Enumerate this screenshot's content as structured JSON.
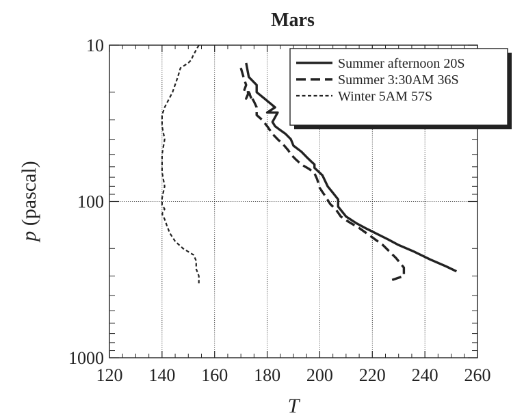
{
  "chart_data": {
    "type": "line",
    "title": "Mars",
    "xlabel": "T",
    "ylabel_italic": "p",
    "ylabel_rest": " (pascal)",
    "xlim": [
      120,
      260
    ],
    "ylim": [
      10,
      1000
    ],
    "yscale": "log",
    "y_inverted": true,
    "x_ticks": [
      120,
      140,
      160,
      180,
      200,
      220,
      240,
      260
    ],
    "y_ticks": [
      10,
      100,
      1000
    ],
    "grid": true,
    "legend_position": "top-right",
    "colors": {
      "line": "#222222",
      "grid": "#222222",
      "frame": "#222222"
    },
    "series": [
      {
        "name": "Summer afternoon 20S",
        "style": "solid",
        "x": [
          172,
          173,
          176,
          176,
          179,
          183,
          180,
          184,
          182,
          183,
          185,
          187,
          189,
          190,
          193,
          195,
          197,
          198,
          198,
          201,
          203,
          205,
          207,
          207,
          210,
          214,
          218,
          222,
          226,
          230,
          236,
          242,
          248,
          252
        ],
        "y": [
          13,
          16,
          18,
          20,
          22,
          25,
          27,
          27,
          31,
          33,
          35,
          37,
          40,
          44,
          48,
          52,
          56,
          58,
          61,
          68,
          80,
          88,
          97,
          108,
          125,
          138,
          150,
          162,
          175,
          190,
          210,
          235,
          260,
          280
        ]
      },
      {
        "name": "Summer 3:30AM 36S",
        "style": "dashed",
        "x": [
          170,
          171,
          172,
          171,
          173,
          172,
          174,
          173,
          175,
          176,
          176,
          178,
          180,
          182,
          184,
          186,
          188,
          189,
          191,
          193,
          196,
          198,
          199,
          200,
          202,
          204,
          206,
          207,
          208,
          211,
          215,
          219,
          224,
          229,
          232,
          232,
          227
        ],
        "y": [
          14,
          16,
          18,
          20,
          20,
          22,
          22,
          20,
          23,
          25,
          28,
          30,
          33,
          37,
          40,
          43,
          47,
          50,
          54,
          58,
          62,
          66,
          72,
          82,
          92,
          104,
          112,
          118,
          125,
          135,
          148,
          165,
          190,
          230,
          265,
          300,
          320
        ]
      },
      {
        "name": "Winter  5AM 57S",
        "style": "dotted",
        "x": [
          154,
          152,
          151,
          150,
          147,
          146,
          144,
          141,
          140,
          140,
          141,
          140,
          140,
          141,
          140,
          140,
          141,
          140,
          141,
          142,
          143,
          145,
          148,
          152,
          153,
          153,
          154,
          154
        ],
        "y": [
          10,
          11.5,
          12.5,
          13,
          14,
          16,
          20,
          25,
          28,
          33,
          40,
          50,
          65,
          80,
          95,
          105,
          112,
          120,
          130,
          145,
          160,
          180,
          200,
          220,
          240,
          270,
          300,
          340
        ]
      }
    ]
  }
}
